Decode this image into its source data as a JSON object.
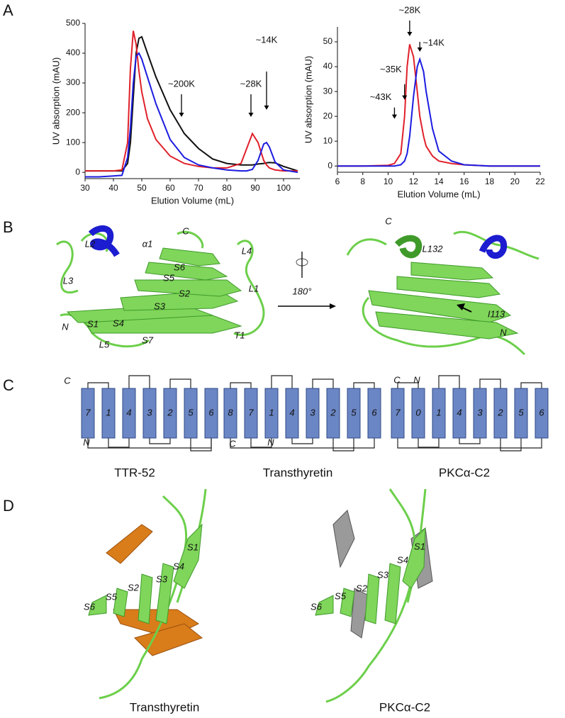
{
  "panel_labels": [
    "A",
    "B",
    "C",
    "D"
  ],
  "chart_data": [
    {
      "type": "line",
      "ylabel": "UV absorption (mAU)",
      "xlabel": "Elution Volume (mL)",
      "x": [
        30,
        35,
        40,
        43,
        45,
        46,
        47,
        48,
        49,
        50,
        52,
        55,
        60,
        65,
        70,
        75,
        80,
        85,
        87,
        89,
        91,
        93,
        94,
        95,
        97,
        100,
        105
      ],
      "series": [
        {
          "color": "#111111",
          "values": [
            5,
            5,
            5,
            5,
            30,
            100,
            250,
            400,
            450,
            455,
            400,
            320,
            210,
            130,
            80,
            45,
            30,
            25,
            25,
            25,
            28,
            30,
            32,
            33,
            32,
            20,
            5
          ]
        },
        {
          "color": "#e0202a",
          "values": [
            5,
            5,
            5,
            8,
            100,
            350,
            475,
            430,
            340,
            270,
            180,
            110,
            55,
            30,
            20,
            15,
            15,
            30,
            80,
            130,
            100,
            40,
            25,
            15,
            8,
            5,
            5
          ]
        },
        {
          "color": "#1c1ce0",
          "values": [
            -15,
            -15,
            -12,
            -10,
            50,
            150,
            300,
            390,
            400,
            380,
            320,
            230,
            110,
            50,
            25,
            15,
            8,
            5,
            5,
            10,
            40,
            95,
            100,
            85,
            35,
            8,
            0
          ]
        }
      ],
      "xlim": [
        30,
        105.75
      ],
      "ylim": [
        -21,
        500
      ],
      "xticks": [
        30,
        40,
        50,
        60,
        70,
        80,
        90,
        100
      ],
      "yticks": [
        0,
        100,
        200,
        300,
        400,
        500
      ],
      "annotations": [
        {
          "text": "~200K",
          "x": 64,
          "y": 186
        },
        {
          "text": "~28K",
          "x": 88.5,
          "y": 186
        },
        {
          "text": "~14K",
          "x": 94,
          "y": 210
        }
      ]
    },
    {
      "type": "line",
      "ylabel": "UV absorption (mAU)",
      "xlabel": "Elution Volume (mL)",
      "x": [
        6,
        8,
        10,
        10.5,
        11,
        11.3,
        11.5,
        11.7,
        12,
        12.3,
        12.5,
        12.8,
        13,
        13.5,
        14,
        15,
        16,
        18,
        20,
        22
      ],
      "series": [
        {
          "color": "#e0202a",
          "values": [
            0,
            0,
            0.3,
            1,
            5,
            20,
            40,
            49,
            44,
            30,
            20,
            12,
            8,
            4,
            2,
            1,
            0.5,
            0,
            0,
            0
          ]
        },
        {
          "color": "#1c1ce0",
          "values": [
            0,
            0,
            0,
            0,
            0.5,
            2,
            5,
            12,
            28,
            40,
            43,
            38,
            30,
            15,
            6,
            2,
            0.5,
            0,
            0,
            0
          ]
        }
      ],
      "xlim": [
        6,
        22
      ],
      "ylim": [
        -2.5,
        56
      ],
      "xticks": [
        6,
        8,
        10,
        12,
        14,
        16,
        18,
        20,
        22
      ],
      "yticks": [
        0,
        10,
        20,
        30,
        40,
        50
      ],
      "annotations": [
        {
          "text": "~28K",
          "x": 11.7,
          "y": 52.3
        },
        {
          "text": "~14K",
          "x": 12.5,
          "y": 46
        },
        {
          "text": "~35K",
          "x": 11.3,
          "y": 26.7
        },
        {
          "text": "~43K",
          "x": 10.5,
          "y": 19
        }
      ]
    }
  ],
  "panel_b": {
    "left_labels": [
      "L2",
      "α1",
      "C",
      "L4",
      "S6",
      "S5",
      "S2",
      "L1",
      "L3",
      "S3",
      "N",
      "S1",
      "S4",
      "L5",
      "S7",
      "T1"
    ],
    "right_labels": [
      "C",
      "L132",
      "I113",
      "N"
    ],
    "rotation": "180°"
  },
  "panel_c": {
    "diagrams": [
      {
        "title": "TTR-52",
        "strands": [
          "7",
          "1",
          "4",
          "3",
          "2",
          "5",
          "6"
        ],
        "c_label": "C",
        "n_label": "N"
      },
      {
        "title": "Transthyretin",
        "strands": [
          "8",
          "7",
          "1",
          "4",
          "3",
          "2",
          "5",
          "6"
        ],
        "c_label": "C",
        "n_label": "N"
      },
      {
        "title": "PKCα-C2",
        "strands": [
          "7",
          "0",
          "1",
          "4",
          "3",
          "2",
          "5",
          "6"
        ],
        "c_label": "C",
        "n_label": "N"
      }
    ]
  },
  "panel_d": {
    "left_labels": [
      "S1",
      "S4",
      "S3",
      "S2",
      "S5",
      "S6"
    ],
    "right_labels": [
      "S1",
      "S4",
      "S3",
      "S2",
      "S5",
      "S6"
    ],
    "left_caption": "Transthyretin",
    "right_caption": "PKCα-C2"
  }
}
